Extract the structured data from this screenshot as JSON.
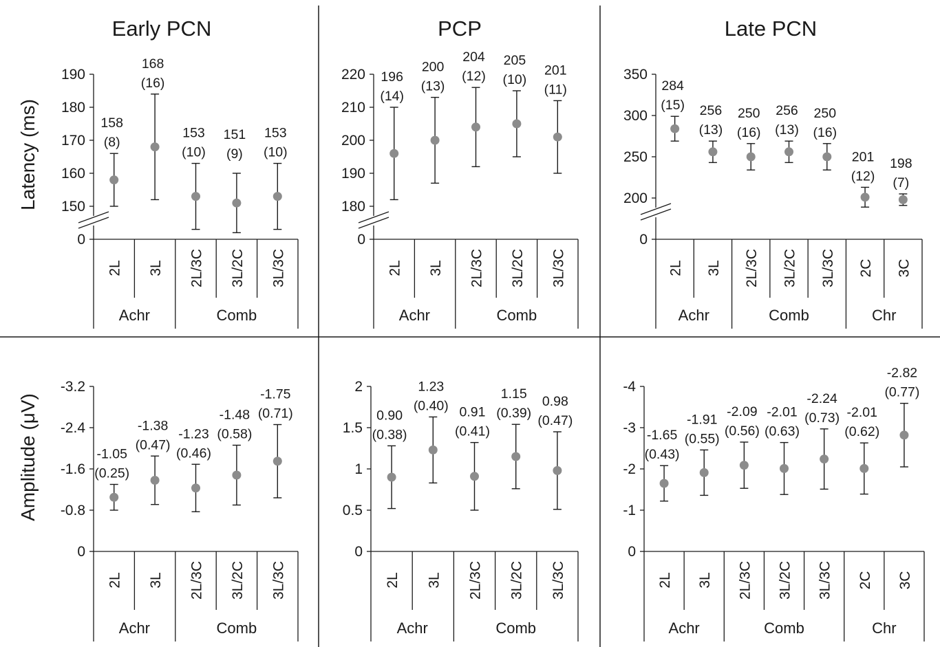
{
  "columns": [
    {
      "title": "Early PCN"
    },
    {
      "title": "PCP"
    },
    {
      "title": "Late PCN"
    }
  ],
  "colors": {
    "point": "#8c8c8c",
    "line": "#1a1a1a",
    "text": "#1a1a1a",
    "background": "#ffffff"
  },
  "chart_data": [
    {
      "type": "scatter",
      "title": "Early PCN",
      "ylabel": "Latency (ms)",
      "ylim": [
        145,
        190
      ],
      "yticks": [
        0,
        150,
        160,
        170,
        180,
        190
      ],
      "axis_break": true,
      "categories": [
        "2L",
        "3L",
        "2L/3C",
        "3L/2C",
        "3L/3C"
      ],
      "groups": [
        {
          "label": "Achr",
          "span": 2
        },
        {
          "label": "Comb",
          "span": 3
        }
      ],
      "values": [
        158,
        168,
        153,
        151,
        153
      ],
      "errors": [
        8,
        16,
        10,
        9,
        10
      ],
      "value_labels": [
        "158",
        "168",
        "153",
        "151",
        "153"
      ],
      "error_labels": [
        "(8)",
        "(16)",
        "(10)",
        "(9)",
        "(10)"
      ],
      "label_offset": [
        0,
        0,
        0,
        -12,
        0
      ],
      "grid": false
    },
    {
      "type": "scatter",
      "title": "PCP",
      "ylabel": "",
      "ylim": [
        175,
        220
      ],
      "yticks": [
        0,
        180,
        190,
        200,
        210,
        220
      ],
      "axis_break": true,
      "categories": [
        "2L",
        "3L",
        "2L/3C",
        "3L/2C",
        "3L/3C"
      ],
      "groups": [
        {
          "label": "Achr",
          "span": 2
        },
        {
          "label": "Comb",
          "span": 3
        }
      ],
      "values": [
        196,
        200,
        204,
        205,
        201
      ],
      "errors": [
        14,
        13,
        12,
        10,
        11
      ],
      "value_labels": [
        "196",
        "200",
        "204",
        "205",
        "201"
      ],
      "error_labels": [
        "(14)",
        "(13)",
        "(12)",
        "(10)",
        "(11)"
      ],
      "label_offset": [
        0,
        0,
        0,
        0,
        0
      ],
      "grid": false
    },
    {
      "type": "scatter",
      "title": "Late PCN",
      "ylabel": "",
      "ylim": [
        175,
        350
      ],
      "yticks": [
        0,
        200,
        250,
        300,
        350
      ],
      "axis_break": true,
      "categories": [
        "2L",
        "3L",
        "2L/3C",
        "3L/2C",
        "3L/3C",
        "2C",
        "3C"
      ],
      "groups": [
        {
          "label": "Achr",
          "span": 2
        },
        {
          "label": "Comb",
          "span": 3
        },
        {
          "label": "Chr",
          "span": 2
        }
      ],
      "values": [
        284,
        256,
        250,
        256,
        250,
        201,
        198
      ],
      "errors": [
        15,
        13,
        16,
        13,
        16,
        12,
        7
      ],
      "value_labels": [
        "284",
        "256",
        "250",
        "256",
        "250",
        "201",
        "198"
      ],
      "error_labels": [
        "(15)",
        "(13)",
        "(16)",
        "(13)",
        "(16)",
        "(12)",
        "(7)"
      ],
      "label_offset": [
        0,
        0,
        0,
        0,
        0,
        0,
        0
      ],
      "grid": false
    },
    {
      "type": "scatter",
      "title": "",
      "ylabel": "Amplitude (μV)",
      "ylim": [
        0,
        -3.2
      ],
      "yticks": [
        0,
        -0.8,
        -1.6,
        -2.4,
        -3.2
      ],
      "ytick_labels": [
        "0",
        "-0.8",
        "-1.6",
        "-2.4",
        "-3.2"
      ],
      "axis_break": false,
      "categories": [
        "2L",
        "3L",
        "2L/3C",
        "3L/2C",
        "3L/3C"
      ],
      "groups": [
        {
          "label": "Achr",
          "span": 2
        },
        {
          "label": "Comb",
          "span": 3
        }
      ],
      "values": [
        -1.05,
        -1.38,
        -1.23,
        -1.48,
        -1.75
      ],
      "errors": [
        0.25,
        0.47,
        0.46,
        0.58,
        0.71
      ],
      "value_labels": [
        "-1.05",
        "-1.38",
        "-1.23",
        "-1.48",
        "-1.75"
      ],
      "error_labels": [
        "(0.25)",
        "(0.47)",
        "(0.46)",
        "(0.58)",
        "(0.71)"
      ],
      "label_offset": [
        0,
        0,
        0,
        0,
        0
      ],
      "grid": false
    },
    {
      "type": "scatter",
      "title": "",
      "ylabel": "",
      "ylim": [
        0,
        2
      ],
      "yticks": [
        0,
        0.5,
        1,
        1.5,
        2
      ],
      "ytick_labels": [
        "0",
        "0.5",
        "1",
        "1.5",
        "2"
      ],
      "axis_break": false,
      "categories": [
        "2L",
        "3L",
        "2L/3C",
        "3L/2C",
        "3L/3C"
      ],
      "groups": [
        {
          "label": "Achr",
          "span": 2
        },
        {
          "label": "Comb",
          "span": 3
        }
      ],
      "values": [
        0.9,
        1.23,
        0.91,
        1.15,
        0.98
      ],
      "errors": [
        0.38,
        0.4,
        0.41,
        0.39,
        0.47
      ],
      "value_labels": [
        "0.90",
        "1.23",
        "0.91",
        "1.15",
        "0.98"
      ],
      "error_labels": [
        "(0.38)",
        "(0.40)",
        "(0.41)",
        "(0.39)",
        "(0.47)"
      ],
      "label_offset": [
        0,
        0,
        0,
        0,
        0
      ],
      "grid": false
    },
    {
      "type": "scatter",
      "title": "",
      "ylabel": "",
      "ylim": [
        0,
        -4
      ],
      "yticks": [
        0,
        -1,
        -2,
        -3,
        -4
      ],
      "ytick_labels": [
        "0",
        "-1",
        "-2",
        "-3",
        "-4"
      ],
      "axis_break": false,
      "categories": [
        "2L",
        "3L",
        "2L/3C",
        "3L/2C",
        "3L/3C",
        "2C",
        "3C"
      ],
      "groups": [
        {
          "label": "Achr",
          "span": 2
        },
        {
          "label": "Comb",
          "span": 3
        },
        {
          "label": "Chr",
          "span": 2
        }
      ],
      "values": [
        -1.65,
        -1.91,
        -2.09,
        -2.01,
        -2.24,
        -2.01,
        -2.82
      ],
      "errors": [
        0.43,
        0.55,
        0.56,
        0.63,
        0.73,
        0.62,
        0.77
      ],
      "value_labels": [
        "-1.65",
        "-1.91",
        "-2.09",
        "-2.01",
        "-2.24",
        "-2.01",
        "-2.82"
      ],
      "error_labels": [
        "(0.43)",
        "(0.55)",
        "(0.56)",
        "(0.63)",
        "(0.73)",
        "(0.62)",
        "(0.77)"
      ],
      "label_offset": [
        0,
        0,
        0,
        0,
        0,
        0,
        0
      ],
      "grid": false
    }
  ]
}
